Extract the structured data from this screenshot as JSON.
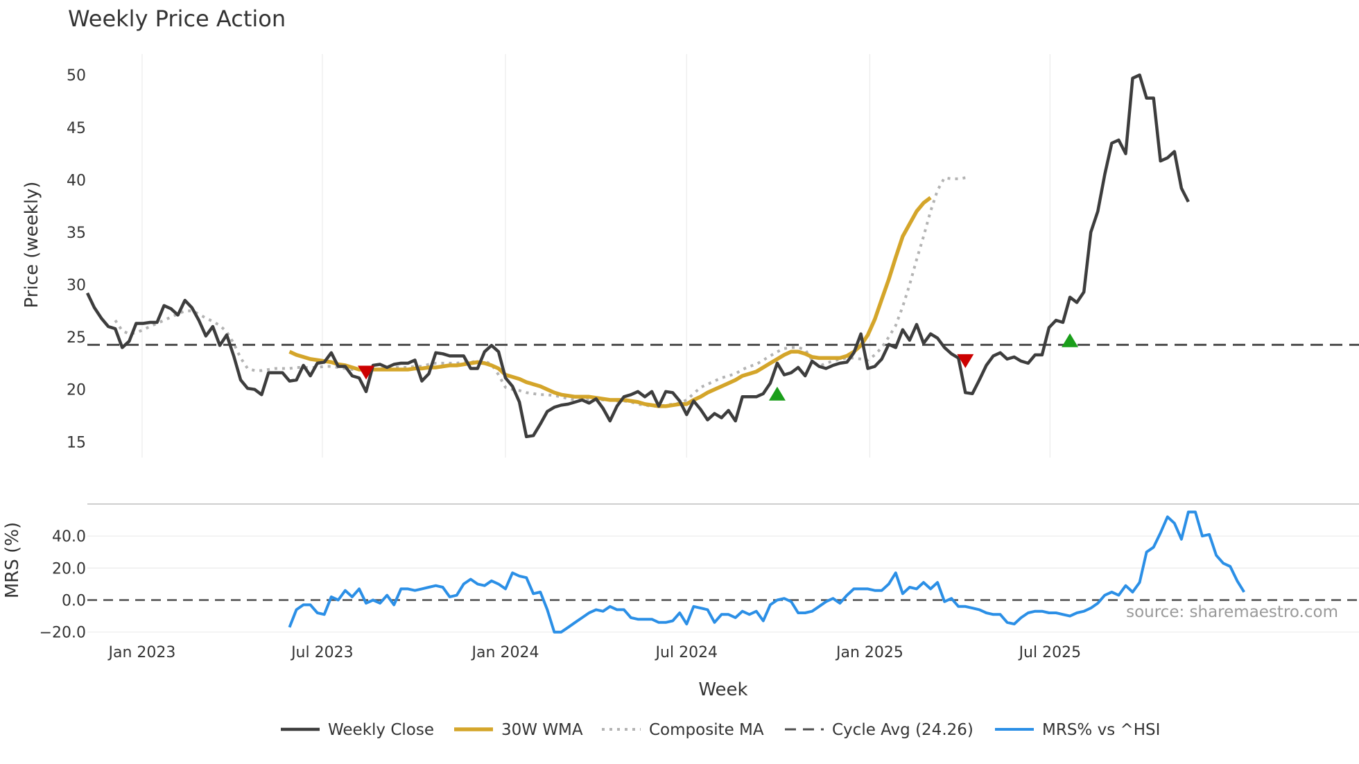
{
  "chart_data": {
    "type": "line",
    "title": "Weekly Price Action",
    "xlabel": "Week",
    "x_ticks": [
      "Jan 2023",
      "Jul 2023",
      "Jan 2024",
      "Jul 2024",
      "Jan 2025",
      "Jul 2025"
    ],
    "x_range": [
      "2022-11-07",
      "2025-11-10"
    ],
    "price_panel": {
      "ylabel": "Price (weekly)",
      "ylim": [
        13.5,
        52
      ],
      "y_ticks": [
        15,
        20,
        25,
        30,
        35,
        40,
        45,
        50
      ],
      "cycle_avg": 24.26
    },
    "mrs_panel": {
      "ylabel": "MRS (%)",
      "ylim": [
        -21,
        60
      ],
      "y_ticks": [
        -20.0,
        0.0,
        20.0,
        40.0
      ],
      "y_tick_labels": [
        "−20.0",
        "0.0",
        "20.0",
        "40.0"
      ]
    },
    "series": [
      {
        "name": "Weekly Close",
        "color": "#3d3d3d",
        "style": "solid",
        "panel": "price",
        "start_week": 0,
        "values": [
          29.2,
          27.8,
          26.8,
          26.0,
          25.8,
          24.0,
          24.6,
          26.3,
          26.3,
          26.4,
          26.4,
          28.0,
          27.7,
          27.1,
          28.5,
          27.8,
          26.6,
          25.1,
          26.0,
          24.2,
          25.2,
          23.2,
          20.9,
          20.1,
          20.0,
          19.5,
          21.6,
          21.6,
          21.6,
          20.8,
          20.9,
          22.3,
          21.3,
          22.5,
          22.6,
          23.5,
          22.2,
          22.2,
          21.3,
          21.1,
          19.8,
          22.3,
          22.4,
          22.1,
          22.4,
          22.5,
          22.5,
          22.8,
          20.8,
          21.5,
          23.5,
          23.4,
          23.2,
          23.2,
          23.2,
          22.0,
          22.0,
          23.6,
          24.2,
          23.6,
          21.1,
          20.3,
          18.8,
          15.5,
          15.6,
          16.7,
          17.9,
          18.3,
          18.5,
          18.6,
          18.8,
          19.0,
          18.7,
          19.1,
          18.2,
          17.0,
          18.4,
          19.3,
          19.5,
          19.8,
          19.3,
          19.8,
          18.4,
          19.8,
          19.7,
          18.9,
          17.6,
          18.9,
          18.1,
          17.1,
          17.7,
          17.3,
          18.0,
          17.0,
          19.3,
          19.3,
          19.3,
          19.6,
          20.6,
          22.5,
          21.4,
          21.6,
          22.1,
          21.3,
          22.7,
          22.2,
          22.0,
          22.3,
          22.5,
          22.6,
          23.5,
          25.3,
          22.0,
          22.2,
          22.9,
          24.3,
          24.0,
          25.7,
          24.7,
          26.2,
          24.4,
          25.3,
          24.9,
          24.0,
          23.4,
          23.0,
          19.7,
          19.6,
          20.9,
          22.3,
          23.2,
          23.5,
          22.9,
          23.1,
          22.7,
          22.5,
          23.3,
          23.3,
          25.9,
          26.6,
          26.4,
          28.8,
          28.3,
          29.3,
          35.0,
          37.0,
          40.5,
          43.5,
          43.8,
          42.5,
          49.7,
          50.0,
          47.8,
          47.8,
          41.8,
          42.1,
          42.7,
          39.2,
          37.9
        ]
      },
      {
        "name": "30W WMA",
        "color": "#d4a52a",
        "style": "solid",
        "panel": "price",
        "start_week": 29,
        "values": [
          23.6,
          23.3,
          23.1,
          22.9,
          22.8,
          22.7,
          22.6,
          22.4,
          22.3,
          22.1,
          21.9,
          21.9,
          21.9,
          21.9,
          21.9,
          21.9,
          21.9,
          21.9,
          22.0,
          22.0,
          22.1,
          22.1,
          22.2,
          22.3,
          22.3,
          22.4,
          22.5,
          22.6,
          22.5,
          22.3,
          22.0,
          21.4,
          21.2,
          21.0,
          20.7,
          20.5,
          20.3,
          20.0,
          19.7,
          19.5,
          19.4,
          19.3,
          19.3,
          19.3,
          19.2,
          19.1,
          19.0,
          19.0,
          19.0,
          18.9,
          18.8,
          18.6,
          18.5,
          18.4,
          18.4,
          18.5,
          18.6,
          18.6,
          19.0,
          19.3,
          19.7,
          20.0,
          20.3,
          20.6,
          20.9,
          21.3,
          21.5,
          21.7,
          22.1,
          22.5,
          22.9,
          23.3,
          23.6,
          23.6,
          23.4,
          23.1,
          23.0,
          23.0,
          23.0,
          23.0,
          23.2,
          23.6,
          24.2,
          25.2,
          26.7,
          28.6,
          30.5,
          32.6,
          34.6,
          35.8,
          37.0,
          37.8,
          38.3
        ]
      },
      {
        "name": "Composite MA",
        "color": "#b3b3b3",
        "style": "dotted",
        "panel": "price",
        "start_week": 4,
        "values": [
          26.6,
          25.6,
          25.3,
          25.4,
          25.7,
          26.0,
          26.3,
          26.6,
          26.9,
          27.2,
          27.5,
          27.5,
          27.2,
          26.8,
          26.5,
          26.1,
          25.5,
          24.4,
          23.0,
          22.0,
          21.8,
          21.8,
          21.9,
          22.0,
          22.0,
          22.0,
          22.1,
          22.1,
          22.1,
          22.1,
          22.2,
          22.2,
          22.1,
          22.0,
          21.9,
          21.9,
          21.9,
          21.9,
          22.0,
          22.0,
          22.1,
          22.1,
          22.1,
          22.2,
          22.2,
          22.4,
          22.5,
          22.5,
          22.5,
          22.5,
          22.6,
          22.6,
          22.7,
          22.7,
          22.4,
          21.4,
          20.2,
          20.0,
          19.9,
          19.7,
          19.6,
          19.5,
          19.5,
          19.4,
          19.3,
          19.1,
          19.0,
          19.0,
          19.0,
          19.1,
          19.0,
          19.0,
          18.9,
          18.9,
          18.8,
          18.6,
          18.5,
          18.4,
          18.4,
          18.5,
          18.6,
          18.7,
          19.0,
          19.6,
          20.2,
          20.5,
          20.8,
          21.1,
          21.3,
          21.5,
          21.9,
          22.2,
          22.4,
          22.8,
          23.2,
          23.6,
          23.9,
          24.0,
          24.0,
          23.8,
          22.8,
          22.2,
          22.5,
          22.7,
          22.9,
          23.0,
          23.0,
          22.9,
          22.8,
          23.3,
          24.0,
          25.0,
          26.1,
          27.9,
          30.0,
          32.4,
          34.6,
          37.0,
          39.0,
          40.2,
          40.1,
          40.1,
          40.2
        ]
      },
      {
        "name": "Cycle Avg (24.26)",
        "color": "#4d4d4d",
        "style": "dashed",
        "panel": "price",
        "value": 24.26
      },
      {
        "name": "MRS% vs ^HSI",
        "color": "#2b8fe6",
        "style": "solid",
        "panel": "mrs",
        "start_week": 29,
        "values": [
          -17,
          -6,
          -3,
          -3,
          -8,
          -9,
          2,
          0,
          6,
          2,
          7,
          -2,
          0,
          -2,
          3,
          -3,
          7,
          7,
          6,
          7,
          8,
          9,
          8,
          2,
          3,
          10,
          13,
          10,
          9,
          12,
          10,
          7,
          17,
          15,
          14,
          4,
          5,
          -6,
          -20,
          -20,
          -17,
          -14,
          -11,
          -8,
          -6,
          -7,
          -4,
          -6,
          -6,
          -11,
          -12,
          -12,
          -12,
          -14,
          -14,
          -13,
          -8,
          -15,
          -4,
          -5,
          -6,
          -14,
          -9,
          -9,
          -11,
          -7,
          -9,
          -7,
          -13,
          -3,
          0,
          1,
          -1,
          -8,
          -8,
          -7,
          -4,
          -1,
          1,
          -2,
          3,
          7,
          7,
          7,
          6,
          6,
          10,
          17,
          4,
          8,
          7,
          11,
          7,
          11,
          -1,
          1,
          -4,
          -4,
          -5,
          -6,
          -8,
          -9,
          -9,
          -14,
          -15,
          -11,
          -8,
          -7,
          -7,
          -8,
          -8,
          -9,
          -10,
          -8,
          -7,
          -5,
          -2,
          3,
          5,
          3,
          9,
          5,
          11,
          30,
          33,
          42,
          52,
          48,
          38,
          55,
          55,
          40,
          41,
          28,
          23,
          21,
          12,
          5
        ]
      }
    ],
    "markers": [
      {
        "type": "sell",
        "symbol": "down-triangle",
        "color": "#cc0000",
        "week": 40,
        "price": 21.6
      },
      {
        "type": "buy",
        "symbol": "up-triangle",
        "color": "#1a9e1a",
        "week": 99,
        "price": 19.6
      },
      {
        "type": "sell",
        "symbol": "down-triangle",
        "color": "#cc0000",
        "week": 126,
        "price": 22.7
      },
      {
        "type": "buy",
        "symbol": "up-triangle",
        "color": "#1a9e1a",
        "week": 141,
        "price": 24.7
      }
    ]
  },
  "watermark": "source: sharemaestro.com"
}
